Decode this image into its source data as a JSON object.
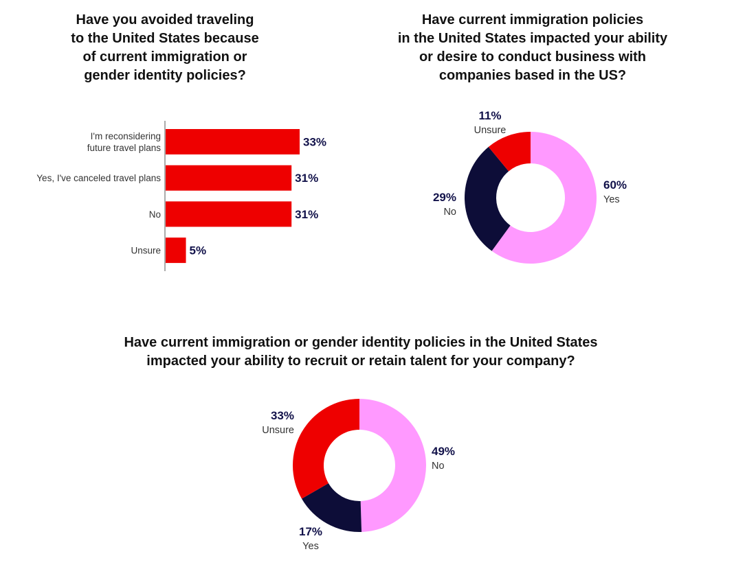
{
  "colors": {
    "red": "#ee0000",
    "navy": "#0d0d38",
    "pink": "#ff99ff",
    "value_text": "#12124a"
  },
  "chart_data": [
    {
      "type": "bar",
      "orientation": "horizontal",
      "title": "Have you avoided traveling\nto the United States because\nof current immigration or\ngender identity policies?",
      "categories": [
        [
          "I'm reconsidering",
          "future travel plans"
        ],
        [
          "Yes, I've canceled travel plans"
        ],
        [
          "No"
        ],
        [
          "Unsure"
        ]
      ],
      "values": [
        33,
        31,
        31,
        5
      ],
      "labels": [
        "33%",
        "31%",
        "31%",
        "5%"
      ],
      "color": "#ee0000"
    },
    {
      "type": "pie",
      "style": "donut",
      "title": "Have current immigration policies\nin the United States impacted your ability\nor desire to conduct business with\ncompanies based in the US?",
      "slices": [
        {
          "name": "Yes",
          "value": 60,
          "label": "60%",
          "color": "#ff99ff"
        },
        {
          "name": "No",
          "value": 29,
          "label": "29%",
          "color": "#0d0d38"
        },
        {
          "name": "Unsure",
          "value": 11,
          "label": "11%",
          "color": "#ee0000"
        }
      ]
    },
    {
      "type": "pie",
      "style": "donut",
      "title": "Have current immigration or gender identity policies in the United States\nimpacted your ability to recruit or retain talent for your company?",
      "slices": [
        {
          "name": "No",
          "value": 49,
          "label": "49%",
          "color": "#ff99ff"
        },
        {
          "name": "Yes",
          "value": 17,
          "label": "17%",
          "color": "#0d0d38"
        },
        {
          "name": "Unsure",
          "value": 33,
          "label": "33%",
          "color": "#ee0000"
        }
      ]
    }
  ]
}
